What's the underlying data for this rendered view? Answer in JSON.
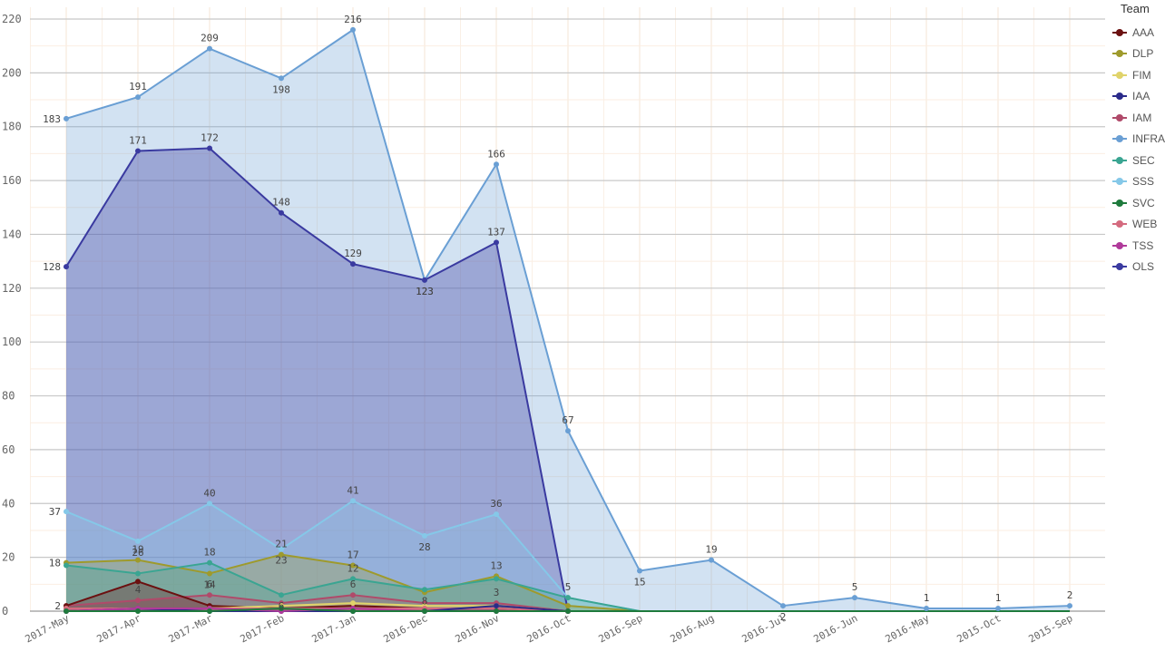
{
  "chart_data": {
    "type": "area",
    "title": "",
    "xlabel": "",
    "ylabel": "",
    "legend_title": "Team",
    "legend_position": "right",
    "grid": true,
    "ylim": [
      0,
      220
    ],
    "y_ticks": [
      0,
      20,
      40,
      60,
      80,
      100,
      120,
      140,
      160,
      180,
      200,
      220
    ],
    "categories": [
      "2017-May",
      "2017-Apr",
      "2017-Mar",
      "2017-Feb",
      "2017-Jan",
      "2016-Dec",
      "2016-Nov",
      "2016-Oct",
      "2016-Sep",
      "2016-Aug",
      "2016-Jul",
      "2016-Jun",
      "2016-May",
      "2015-Oct",
      "2015-Sep"
    ],
    "series": [
      {
        "name": "AAA",
        "color": "#6b1010",
        "values": [
          2,
          11,
          2,
          1,
          2,
          1,
          1,
          0,
          0,
          0,
          0,
          0,
          0,
          0,
          0
        ]
      },
      {
        "name": "DLP",
        "color": "#9e9a2c",
        "values": [
          18,
          19,
          14,
          21,
          17,
          7,
          13,
          2,
          0,
          0,
          0,
          0,
          0,
          0,
          0
        ]
      },
      {
        "name": "FIM",
        "color": "#e0d36a",
        "values": [
          1,
          1,
          1,
          2,
          3,
          2,
          2,
          0,
          0,
          0,
          0,
          0,
          0,
          0,
          0
        ]
      },
      {
        "name": "IAA",
        "color": "#2a2a8a",
        "values": [
          0,
          1,
          0,
          0,
          0,
          0,
          2,
          0,
          0,
          0,
          0,
          0,
          0,
          0,
          0
        ]
      },
      {
        "name": "IAM",
        "color": "#b04a6a",
        "values": [
          2,
          4,
          6,
          3,
          6,
          3,
          3,
          0,
          0,
          0,
          0,
          0,
          0,
          0,
          0
        ]
      },
      {
        "name": "INFRA",
        "color": "#6a9fd4",
        "values": [
          183,
          191,
          209,
          198,
          216,
          123,
          166,
          67,
          15,
          19,
          2,
          5,
          1,
          1,
          2
        ]
      },
      {
        "name": "SEC",
        "color": "#3aa592",
        "values": [
          17,
          14,
          18,
          6,
          12,
          8,
          12,
          5,
          0,
          0,
          0,
          0,
          0,
          0,
          0
        ]
      },
      {
        "name": "SSS",
        "color": "#85c8e8",
        "values": [
          37,
          26,
          40,
          23,
          41,
          28,
          36,
          5,
          0,
          0,
          0,
          0,
          0,
          0,
          0
        ]
      },
      {
        "name": "SVC",
        "color": "#1e7a3c",
        "values": [
          0,
          0,
          0,
          1,
          0,
          0,
          0,
          0,
          0,
          0,
          0,
          0,
          0,
          0,
          0
        ]
      },
      {
        "name": "WEB",
        "color": "#d46a7e",
        "values": [
          1,
          1,
          1,
          1,
          1,
          1,
          1,
          0,
          0,
          0,
          0,
          0,
          0,
          0,
          0
        ]
      },
      {
        "name": "TSS",
        "color": "#b03a9a",
        "values": [
          0,
          1,
          1,
          0,
          1,
          0,
          0,
          0,
          0,
          0,
          0,
          0,
          0,
          0,
          0
        ]
      },
      {
        "name": "OLS",
        "color": "#3a3aa0",
        "values": [
          128,
          171,
          172,
          148,
          129,
          123,
          137,
          0,
          0,
          0,
          0,
          0,
          0,
          0,
          0
        ]
      }
    ],
    "data_labels": [
      {
        "series": "INFRA",
        "labels": [
          "183",
          "191",
          "209",
          "198",
          "216",
          "123",
          "166",
          "67",
          "15",
          "19",
          "2",
          "5",
          "1",
          "1",
          "2"
        ]
      },
      {
        "series": "OLS",
        "labels": [
          "128",
          "171",
          "172",
          "148",
          "129",
          "123",
          "137",
          "",
          "",
          "",
          "",
          "",
          "",
          "",
          ""
        ]
      },
      {
        "series": "SSS",
        "labels": [
          "37",
          "26",
          "40",
          "23",
          "41",
          "28",
          "36",
          "",
          "",
          "",
          "",
          "",
          "",
          "",
          ""
        ]
      },
      {
        "series": "DLP",
        "labels": [
          "18",
          "19",
          "14",
          "21",
          "17",
          "",
          "13",
          "",
          "",
          "",
          "",
          "",
          "",
          "",
          ""
        ]
      },
      {
        "series": "SEC",
        "labels": [
          "",
          "",
          "18",
          "6",
          "12",
          "8",
          "",
          "5",
          "",
          "",
          "",
          "",
          "",
          "",
          ""
        ]
      },
      {
        "series": "IAM",
        "labels": [
          "2",
          "4",
          "6",
          "",
          "6",
          "",
          "3",
          "",
          "",
          "",
          "",
          "",
          "",
          "",
          ""
        ]
      }
    ]
  }
}
